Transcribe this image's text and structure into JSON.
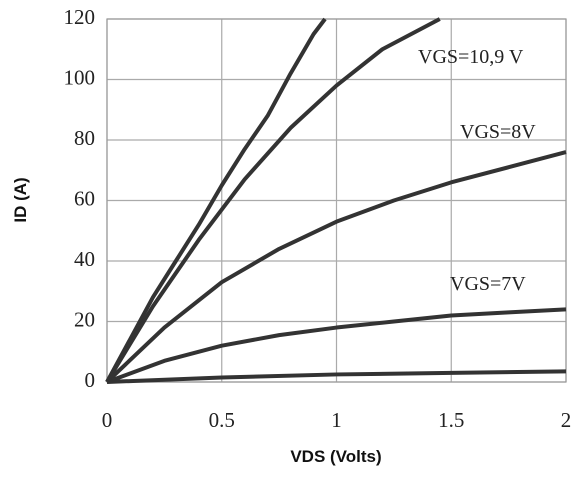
{
  "chart_data": {
    "type": "line",
    "xlabel": "VDS (Volts)",
    "ylabel": "ID (A)",
    "xlim": [
      0,
      2
    ],
    "ylim": [
      0,
      120
    ],
    "xticks": [
      0,
      0.5,
      1,
      1.5,
      2
    ],
    "yticks": [
      0,
      20,
      40,
      60,
      80,
      100,
      120
    ],
    "grid": true,
    "series": [
      {
        "color": "#333333",
        "x": [
          0,
          0.1,
          0.2,
          0.3,
          0.4,
          0.5,
          0.6,
          0.7,
          0.8,
          0.9,
          0.95
        ],
        "values": [
          0,
          14,
          28,
          40,
          52,
          65,
          77,
          88,
          102,
          115,
          120
        ]
      },
      {
        "color": "#333333",
        "x": [
          0,
          0.2,
          0.4,
          0.6,
          0.8,
          1,
          1.2,
          1.45
        ],
        "values": [
          0,
          25,
          47,
          67,
          84,
          98,
          110,
          120
        ]
      },
      {
        "color": "#333333",
        "x": [
          0,
          0.25,
          0.5,
          0.75,
          1,
          1.25,
          1.5,
          1.75,
          2
        ],
        "values": [
          0,
          18,
          33,
          44,
          53,
          60,
          66,
          71,
          76
        ]
      },
      {
        "color": "#333333",
        "x": [
          0,
          0.25,
          0.5,
          0.75,
          1,
          1.25,
          1.5,
          1.75,
          2
        ],
        "values": [
          0,
          7,
          12,
          15.5,
          18,
          20,
          22,
          23,
          24
        ]
      },
      {
        "color": "#333333",
        "x": [
          0,
          0.5,
          1,
          1.5,
          2
        ],
        "values": [
          0,
          1.5,
          2.5,
          3,
          3.5
        ]
      }
    ],
    "annotations": [
      "VGS=10,9 V",
      "VGS=8V",
      "VGS=7V"
    ]
  }
}
